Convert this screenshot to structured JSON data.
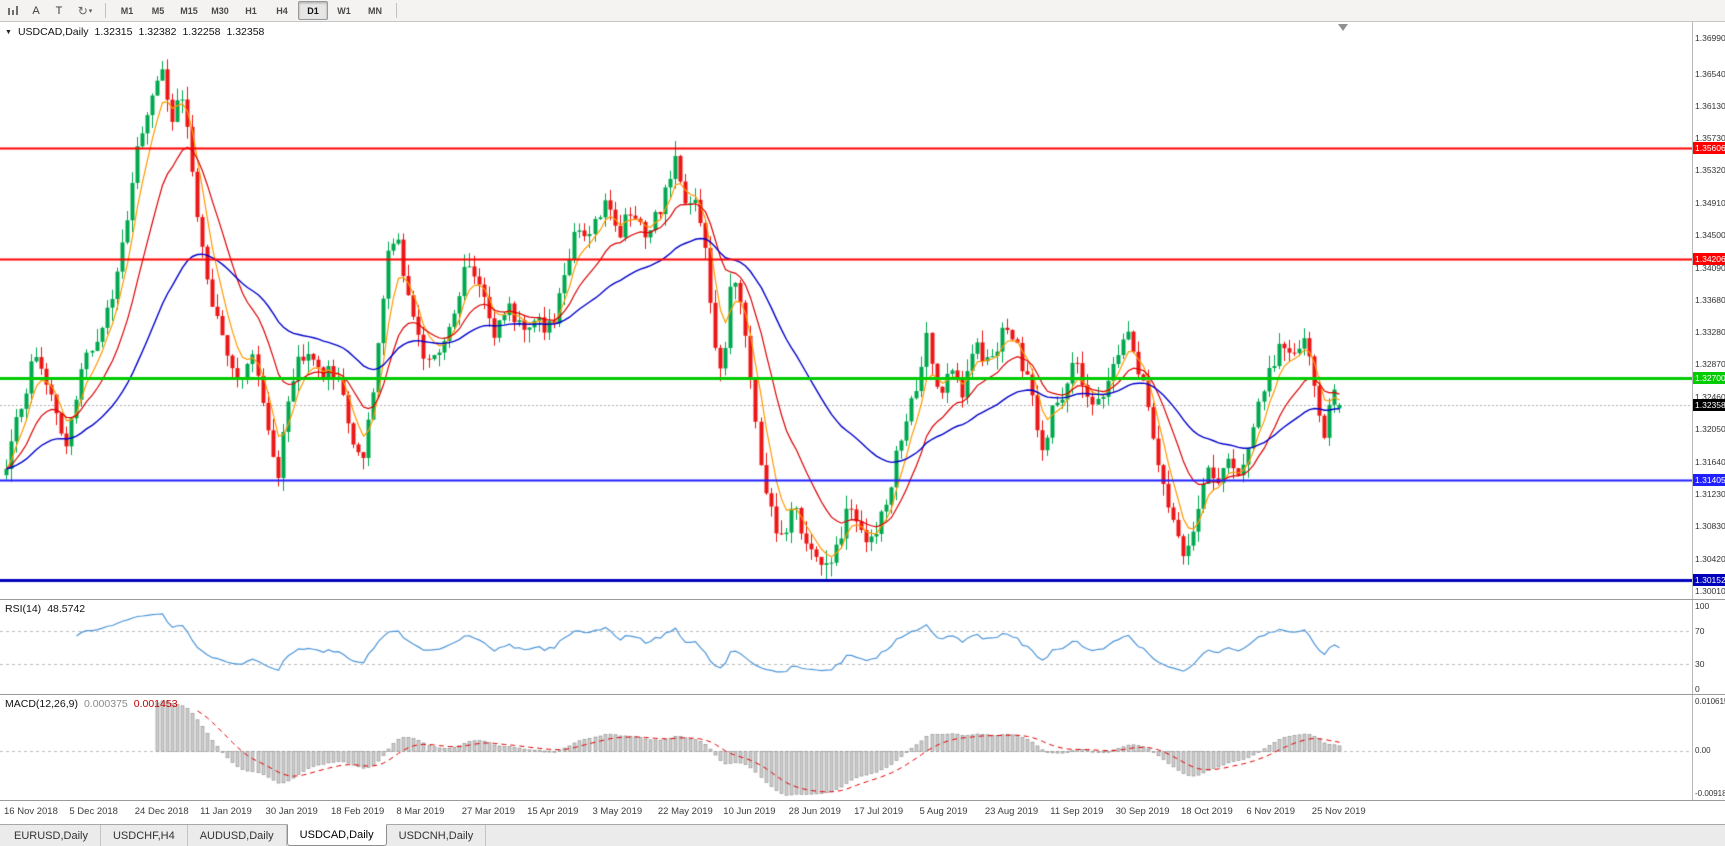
{
  "toolbar": {
    "text_buttons": [
      "A",
      "T"
    ],
    "cycle_glyph": "↻",
    "caret_glyph": "▾",
    "timeframes": [
      "M1",
      "M5",
      "M15",
      "M30",
      "H1",
      "H4",
      "D1",
      "W1",
      "MN"
    ],
    "active_timeframe": "D1"
  },
  "chart": {
    "collapse_arrow": "▼",
    "symbol_label": "USDCAD,Daily",
    "open": "1.32315",
    "high": "1.32382",
    "low": "1.32258",
    "close": "1.32358",
    "current_price": "1.32358",
    "scale_max": 1.3699,
    "scale_min": 1.3001,
    "price_axis_labels": [
      "1.36990",
      "1.36540",
      "1.36130",
      "1.35730",
      "1.35320",
      "1.34910",
      "1.34500",
      "1.34090",
      "1.33680",
      "1.33280",
      "1.32870",
      "1.32460",
      "1.32050",
      "1.31640",
      "1.31230",
      "1.30830",
      "1.30420",
      "1.30010"
    ],
    "hlines": [
      {
        "label": "1.35606",
        "price": 1.35606,
        "color": "#ff0000",
        "width": 2
      },
      {
        "label": "1.34206",
        "price": 1.34206,
        "color": "#ff0000",
        "width": 2
      },
      {
        "label": "1.32700",
        "price": 1.327,
        "color": "#00cc00",
        "width": 3
      },
      {
        "label": "1.31405",
        "price": 1.31405,
        "color": "#1f1fff",
        "width": 2
      },
      {
        "label": "1.30152",
        "price": 1.30152,
        "color": "#0000bb",
        "width": 3
      }
    ],
    "colors": {
      "bull": "#00a94f",
      "bear": "#ee1515",
      "ma_fast": "#ff9900",
      "ma_mid": "#dd0000",
      "ma_slow": "#0000cc",
      "current_price_line": "#b0b0b0",
      "current_badge_bg": "#000000"
    }
  },
  "rsi": {
    "name": "RSI(14)",
    "value": "48.5742",
    "color": "#4f96d8",
    "upper_level": 70,
    "lower_level": 30,
    "axis_labels": [
      {
        "text": "100",
        "value": 100
      },
      {
        "text": "70",
        "value": 70
      },
      {
        "text": "30",
        "value": 30
      },
      {
        "text": "0",
        "value": 0
      }
    ]
  },
  "macd": {
    "name": "MACD(12,26,9)",
    "value_main": "0.000375",
    "value_signal": "0.001453",
    "scale_max": 0.010615,
    "scale_min": -0.00918,
    "histogram_color": "#cdcdcd",
    "histogram_edge": "#8a8a8a",
    "signal_color": "#e00000",
    "axis_labels": [
      {
        "text": "0.010615",
        "value": 0.010615
      },
      {
        "text": "0.00",
        "value": 0
      },
      {
        "text": "-0.00918",
        "value": -0.00918
      }
    ]
  },
  "date_axis": [
    "16 Nov 2018",
    "5 Dec 2018",
    "24 Dec 2018",
    "11 Jan 2019",
    "30 Jan 2019",
    "18 Feb 2019",
    "8 Mar 2019",
    "27 Mar 2019",
    "15 Apr 2019",
    "3 May 2019",
    "22 May 2019",
    "10 Jun 2019",
    "28 Jun 2019",
    "17 Jul 2019",
    "5 Aug 2019",
    "23 Aug 2019",
    "11 Sep 2019",
    "30 Sep 2019",
    "18 Oct 2019",
    "6 Nov 2019",
    "25 Nov 2019"
  ],
  "tabs": [
    {
      "label": "EURUSD,Daily",
      "active": false
    },
    {
      "label": "USDCHF,H4",
      "active": false
    },
    {
      "label": "AUDUSD,Daily",
      "active": false
    },
    {
      "label": "USDCAD,Daily",
      "active": true
    },
    {
      "label": "USDCNH,Daily",
      "active": false
    }
  ],
  "chart_data": {
    "type": "candlestick",
    "symbol": "USDCAD",
    "timeframe": "Daily",
    "title": "USDCAD,Daily",
    "candle_count": 266,
    "y_range": [
      1.3001,
      1.3699
    ],
    "last_ohlc": {
      "open": 1.32315,
      "high": 1.32382,
      "low": 1.32258,
      "close": 1.32358
    },
    "horizontal_levels": [
      1.35606,
      1.34206,
      1.327,
      1.31405,
      1.30152
    ],
    "indicators": [
      {
        "name": "MA fast",
        "color": "orange"
      },
      {
        "name": "MA mid",
        "color": "red"
      },
      {
        "name": "MA slow",
        "color": "blue"
      },
      {
        "name": "RSI(14)",
        "current": 48.5742,
        "levels": [
          70,
          30
        ]
      },
      {
        "name": "MACD(12,26,9)",
        "macd": 0.000375,
        "signal": 0.001453
      }
    ],
    "note": "close path estimated from pixels as [position 0-1 across visible range, price]",
    "close_path_anchors": [
      [
        0.0,
        1.3165
      ],
      [
        0.01,
        1.323
      ],
      [
        0.022,
        1.33
      ],
      [
        0.034,
        1.3255
      ],
      [
        0.046,
        1.318
      ],
      [
        0.058,
        1.329
      ],
      [
        0.072,
        1.333
      ],
      [
        0.085,
        1.342
      ],
      [
        0.097,
        1.3545
      ],
      [
        0.108,
        1.361
      ],
      [
        0.117,
        1.3655
      ],
      [
        0.125,
        1.3595
      ],
      [
        0.132,
        1.363
      ],
      [
        0.141,
        1.3505
      ],
      [
        0.151,
        1.339
      ],
      [
        0.162,
        1.333
      ],
      [
        0.174,
        1.326
      ],
      [
        0.186,
        1.3295
      ],
      [
        0.196,
        1.32
      ],
      [
        0.204,
        1.314
      ],
      [
        0.212,
        1.3255
      ],
      [
        0.222,
        1.33
      ],
      [
        0.236,
        1.328
      ],
      [
        0.25,
        1.3265
      ],
      [
        0.259,
        1.3205
      ],
      [
        0.266,
        1.3155
      ],
      [
        0.276,
        1.326
      ],
      [
        0.286,
        1.3425
      ],
      [
        0.294,
        1.344
      ],
      [
        0.303,
        1.3365
      ],
      [
        0.313,
        1.3305
      ],
      [
        0.323,
        1.329
      ],
      [
        0.334,
        1.3345
      ],
      [
        0.346,
        1.3415
      ],
      [
        0.356,
        1.339
      ],
      [
        0.366,
        1.333
      ],
      [
        0.378,
        1.3355
      ],
      [
        0.39,
        1.334
      ],
      [
        0.402,
        1.3335
      ],
      [
        0.412,
        1.335
      ],
      [
        0.42,
        1.3405
      ],
      [
        0.429,
        1.3465
      ],
      [
        0.439,
        1.345
      ],
      [
        0.449,
        1.349
      ],
      [
        0.459,
        1.345
      ],
      [
        0.469,
        1.348
      ],
      [
        0.479,
        1.3445
      ],
      [
        0.488,
        1.3475
      ],
      [
        0.496,
        1.351
      ],
      [
        0.502,
        1.355
      ],
      [
        0.509,
        1.3495
      ],
      [
        0.516,
        1.3505
      ],
      [
        0.524,
        1.3445
      ],
      [
        0.531,
        1.331
      ],
      [
        0.538,
        1.3275
      ],
      [
        0.544,
        1.3405
      ],
      [
        0.551,
        1.3365
      ],
      [
        0.559,
        1.3255
      ],
      [
        0.567,
        1.3155
      ],
      [
        0.575,
        1.309
      ],
      [
        0.583,
        1.307
      ],
      [
        0.591,
        1.3105
      ],
      [
        0.6,
        1.3055
      ],
      [
        0.609,
        1.3035
      ],
      [
        0.617,
        1.3028
      ],
      [
        0.625,
        1.307
      ],
      [
        0.633,
        1.311
      ],
      [
        0.641,
        1.3082
      ],
      [
        0.65,
        1.306
      ],
      [
        0.659,
        1.3105
      ],
      [
        0.668,
        1.317
      ],
      [
        0.676,
        1.323
      ],
      [
        0.684,
        1.3265
      ],
      [
        0.691,
        1.332
      ],
      [
        0.699,
        1.324
      ],
      [
        0.708,
        1.329
      ],
      [
        0.717,
        1.324
      ],
      [
        0.726,
        1.331
      ],
      [
        0.735,
        1.3292
      ],
      [
        0.744,
        1.3312
      ],
      [
        0.752,
        1.334
      ],
      [
        0.761,
        1.329
      ],
      [
        0.769,
        1.3248
      ],
      [
        0.777,
        1.3168
      ],
      [
        0.785,
        1.3232
      ],
      [
        0.794,
        1.3258
      ],
      [
        0.803,
        1.329
      ],
      [
        0.812,
        1.3248
      ],
      [
        0.821,
        1.3238
      ],
      [
        0.83,
        1.3282
      ],
      [
        0.839,
        1.333
      ],
      [
        0.847,
        1.3295
      ],
      [
        0.855,
        1.3242
      ],
      [
        0.863,
        1.3168
      ],
      [
        0.871,
        1.3108
      ],
      [
        0.879,
        1.3068
      ],
      [
        0.886,
        1.3045
      ],
      [
        0.893,
        1.3102
      ],
      [
        0.901,
        1.3148
      ],
      [
        0.909,
        1.3132
      ],
      [
        0.917,
        1.3168
      ],
      [
        0.925,
        1.3148
      ],
      [
        0.933,
        1.3188
      ],
      [
        0.941,
        1.3238
      ],
      [
        0.949,
        1.3288
      ],
      [
        0.957,
        1.3312
      ],
      [
        0.964,
        1.3292
      ],
      [
        0.971,
        1.3318
      ],
      [
        0.978,
        1.3298
      ],
      [
        0.984,
        1.3242
      ],
      [
        0.988,
        1.3185
      ],
      [
        0.992,
        1.3228
      ],
      [
        0.996,
        1.3248
      ],
      [
        1.0,
        1.32358
      ]
    ]
  }
}
